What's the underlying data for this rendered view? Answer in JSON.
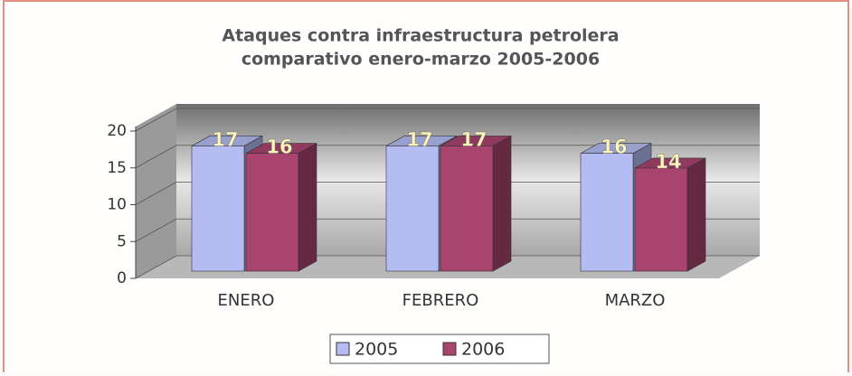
{
  "chart_data": {
    "type": "bar3d",
    "title": [
      "Ataques contra infraestructura petrolera",
      "comparativo enero-marzo 2005-2006"
    ],
    "categories": [
      "ENERO",
      "FEBRERO",
      "MARZO"
    ],
    "series": [
      {
        "name": "2005",
        "color": "#b4bcf2",
        "values": [
          17,
          17,
          16
        ]
      },
      {
        "name": "2006",
        "color": "#a8446e",
        "values": [
          16,
          17,
          14
        ]
      }
    ],
    "ylim": [
      0,
      20
    ],
    "yticks": [
      0,
      5,
      10,
      15,
      20
    ],
    "grid": true,
    "legend": "bottom"
  }
}
